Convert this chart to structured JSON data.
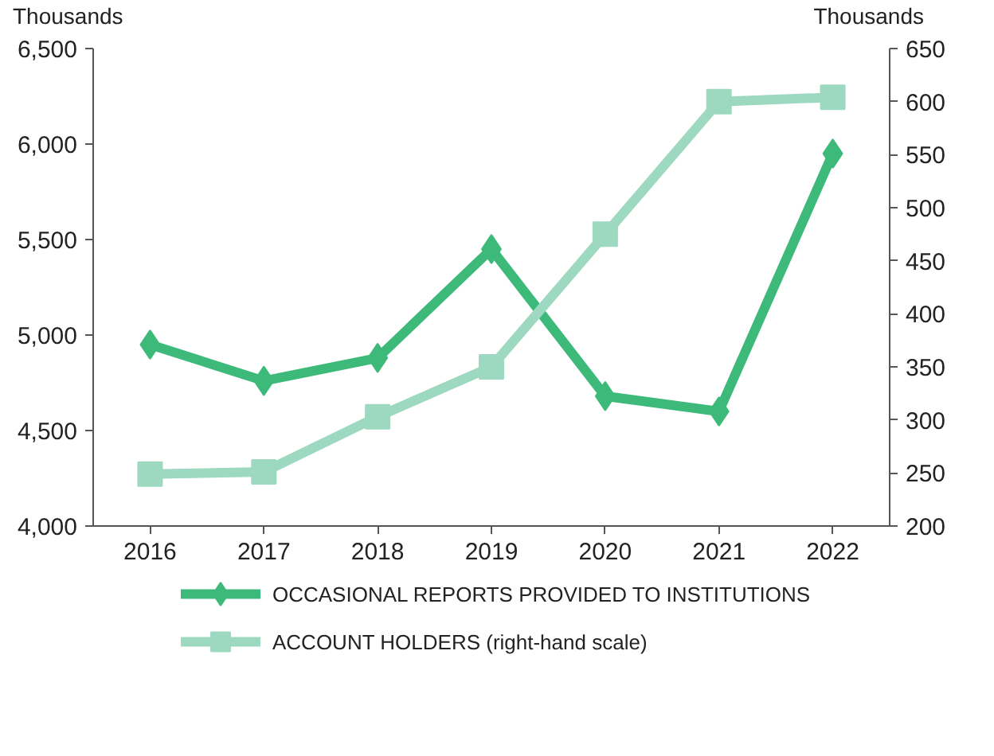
{
  "chart_data": {
    "type": "line",
    "categories": [
      "2016",
      "2017",
      "2018",
      "2019",
      "2020",
      "2021",
      "2022"
    ],
    "ylabel": "Thousands",
    "y2label": "Thousands",
    "ylim": [
      4000,
      6500
    ],
    "yticks": [
      {
        "value": 4000,
        "label": "4,000"
      },
      {
        "value": 4500,
        "label": "4,500"
      },
      {
        "value": 5000,
        "label": "5,000"
      },
      {
        "value": 5500,
        "label": "5,500"
      },
      {
        "value": 6000,
        "label": "6,000"
      },
      {
        "value": 6500,
        "label": "6,500"
      }
    ],
    "y2lim": [
      200,
      650
    ],
    "y2ticks": [
      200,
      250,
      300,
      350,
      400,
      450,
      500,
      550,
      600,
      650
    ],
    "series": [
      {
        "name": "OCCASIONAL REPORTS PROVIDED TO INSTITUTIONS",
        "color": "#3dba7a",
        "marker": "diamond",
        "values": [
          4950,
          4760,
          4880,
          5450,
          4680,
          4600,
          5950
        ]
      },
      {
        "name": "ACCOUNT HOLDERS (right-hand scale)",
        "color": "#9dd8c0",
        "marker": "square",
        "axis": "y2",
        "values": [
          249,
          251,
          303,
          350,
          475,
          600,
          604
        ]
      }
    ],
    "legend": "bottom",
    "grid": false,
    "line_style": "solid"
  }
}
